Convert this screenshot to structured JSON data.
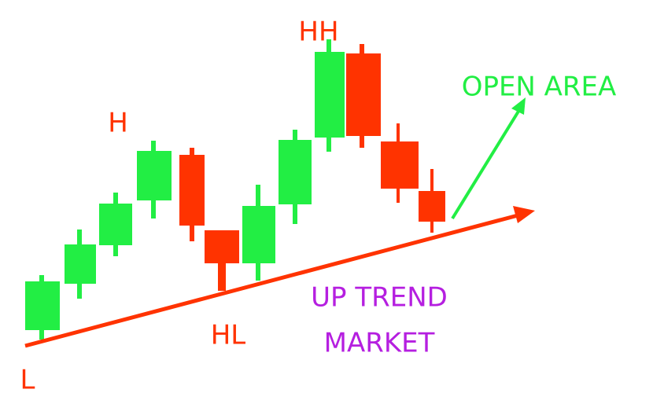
{
  "labels": {
    "low": "L",
    "high": "H",
    "higher_low": "HL",
    "higher_high": "HH",
    "open_area": "OPEN AREA",
    "trend_line1": "UP TREND",
    "trend_line2": "MARKET"
  }
}
